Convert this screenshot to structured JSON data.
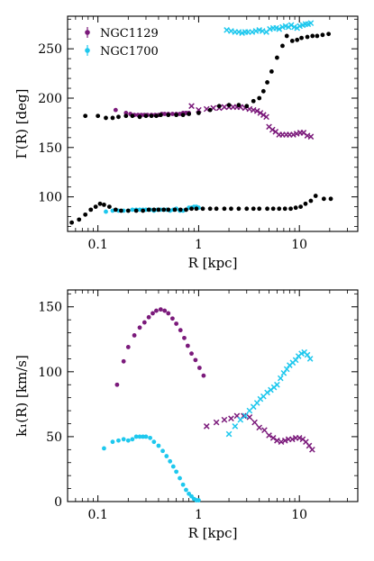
{
  "colors": {
    "ngc1129": "#7b1a7b",
    "ngc1700": "#1ec8ee",
    "other": "#000000"
  },
  "chart_data": [
    {
      "type": "scatter",
      "xscale": "log",
      "xlabel": "R [kpc]",
      "ylabel": "Γ(R) [deg]",
      "xlim": [
        0.05,
        38
      ],
      "ylim": [
        65,
        283
      ],
      "xticks": [
        {
          "value": 0.1,
          "label": "0.1"
        },
        {
          "value": 1,
          "label": "1"
        },
        {
          "value": 10,
          "label": "10"
        }
      ],
      "yticks": [
        {
          "value": 100,
          "label": "100"
        },
        {
          "value": 150,
          "label": "150"
        },
        {
          "value": 200,
          "label": "200"
        },
        {
          "value": 250,
          "label": "250"
        }
      ],
      "legend": {
        "placement": "top-left",
        "entries": [
          {
            "name": "NGC1129",
            "color": "#7b1a7b"
          },
          {
            "name": "NGC1700",
            "color": "#1ec8ee"
          }
        ]
      },
      "series": [
        {
          "name": "NGC1129",
          "marker": "dot",
          "color": "#7b1a7b",
          "x": [
            0.15,
            0.19,
            0.21,
            0.23,
            0.25,
            0.27,
            0.29,
            0.31,
            0.34,
            0.37,
            0.4,
            0.43,
            0.46,
            0.5,
            0.55,
            0.6,
            0.65,
            0.7,
            0.75,
            0.8
          ],
          "y": [
            188,
            185,
            184,
            183,
            183,
            183,
            183,
            183,
            183,
            183,
            183,
            184,
            184,
            184,
            184,
            184,
            184,
            185,
            185,
            185
          ]
        },
        {
          "name": "NGC1129 (×)",
          "marker": "x",
          "color": "#7b1a7b",
          "x": [
            0.85,
            1.0,
            1.2,
            1.4,
            1.6,
            1.8,
            2.0,
            2.2,
            2.4,
            2.6,
            2.9,
            3.2,
            3.5,
            3.8,
            4.1,
            4.4,
            4.7,
            5.0,
            5.4,
            5.8,
            6.3,
            6.8,
            7.4,
            8.0,
            8.7,
            9.4,
            10.2,
            11.0,
            12.0,
            13.0
          ],
          "y": [
            192,
            188,
            189,
            190,
            190,
            191,
            191,
            191,
            191,
            191,
            190,
            189,
            188,
            187,
            185,
            183,
            181,
            171,
            168,
            166,
            163,
            163,
            163,
            163,
            163,
            164,
            165,
            165,
            162,
            161
          ]
        },
        {
          "name": "NGC1700",
          "marker": "dot",
          "color": "#1ec8ee",
          "x": [
            0.12,
            0.14,
            0.16,
            0.18,
            0.2,
            0.22,
            0.24,
            0.26,
            0.28,
            0.3,
            0.33,
            0.36,
            0.39,
            0.42,
            0.45,
            0.48,
            0.52,
            0.56,
            0.6,
            0.65,
            0.7,
            0.75,
            0.8,
            0.85,
            0.9,
            0.95,
            1.0
          ],
          "y": [
            85,
            86,
            86,
            86,
            86,
            87,
            87,
            87,
            87,
            87,
            87,
            86,
            87,
            87,
            87,
            87,
            86,
            87,
            88,
            86,
            86,
            87,
            89,
            89,
            90,
            90,
            89
          ]
        },
        {
          "name": "NGC1700 (×)",
          "marker": "x",
          "color": "#1ec8ee",
          "x": [
            1.9,
            2.1,
            2.3,
            2.5,
            2.7,
            2.9,
            3.1,
            3.4,
            3.7,
            4.0,
            4.3,
            4.7,
            5.1,
            5.5,
            5.9,
            6.3,
            6.8,
            7.3,
            7.8,
            8.3,
            8.9,
            9.5,
            10.1,
            10.8,
            11.5,
            12.2,
            13.0
          ],
          "y": [
            269,
            268,
            267,
            267,
            266,
            267,
            267,
            267,
            268,
            269,
            268,
            267,
            270,
            271,
            271,
            270,
            272,
            273,
            272,
            274,
            272,
            271,
            273,
            274,
            275,
            275,
            276
          ]
        },
        {
          "name": "",
          "marker": "dot",
          "color": "#000000",
          "x": [
            0.075,
            0.1,
            0.12,
            0.14,
            0.16,
            0.19,
            0.22,
            0.26,
            0.3,
            0.34,
            0.38,
            0.42,
            0.5,
            0.6,
            0.7,
            0.8,
            1.0,
            1.3,
            1.6,
            2.0,
            2.5,
            3.0,
            3.5,
            4.0,
            4.4,
            4.8,
            5.3,
            6.0,
            6.8,
            7.5,
            8.5,
            9.5,
            10.5,
            12.0,
            13.5,
            15.0,
            17.0,
            19.5
          ],
          "y": [
            182,
            182,
            180,
            180,
            181,
            182,
            182,
            181,
            182,
            182,
            182,
            183,
            183,
            183,
            183,
            184,
            185,
            188,
            192,
            193,
            193,
            192,
            197,
            200,
            207,
            216,
            227,
            241,
            253,
            263,
            258,
            259,
            261,
            262,
            263,
            263,
            264,
            265
          ]
        },
        {
          "name": "",
          "marker": "dot",
          "color": "#000000",
          "x": [
            0.055,
            0.065,
            0.075,
            0.085,
            0.095,
            0.105,
            0.115,
            0.13,
            0.15,
            0.17,
            0.2,
            0.24,
            0.28,
            0.32,
            0.36,
            0.4,
            0.45,
            0.5,
            0.58,
            0.66,
            0.75,
            0.85,
            0.95,
            1.1,
            1.3,
            1.5,
            1.8,
            2.1,
            2.5,
            3.0,
            3.5,
            4.0,
            4.8,
            5.5,
            6.3,
            7.2,
            8.2,
            9.2,
            10.3,
            11.5,
            13.0,
            14.5,
            17.5,
            20.5
          ],
          "y": [
            74,
            77,
            82,
            87,
            90,
            93,
            92,
            90,
            87,
            86,
            86,
            86,
            86,
            87,
            87,
            87,
            87,
            87,
            87,
            87,
            87,
            88,
            88,
            88,
            88,
            88,
            88,
            88,
            88,
            88,
            88,
            88,
            88,
            88,
            88,
            88,
            88,
            89,
            90,
            93,
            96,
            101,
            98,
            98
          ]
        }
      ]
    },
    {
      "type": "scatter",
      "xscale": "log",
      "xlabel": "R [kpc]",
      "ylabel": "k₁(R) [km/s]",
      "xlim": [
        0.05,
        38
      ],
      "ylim": [
        0,
        163
      ],
      "xticks": [
        {
          "value": 0.1,
          "label": "0.1"
        },
        {
          "value": 1,
          "label": "1"
        },
        {
          "value": 10,
          "label": "10"
        }
      ],
      "yticks": [
        {
          "value": 0,
          "label": "0"
        },
        {
          "value": 50,
          "label": "50"
        },
        {
          "value": 100,
          "label": "100"
        },
        {
          "value": 150,
          "label": "150"
        }
      ],
      "series": [
        {
          "name": "NGC1129",
          "marker": "dot",
          "color": "#7b1a7b",
          "x": [
            0.155,
            0.18,
            0.2,
            0.23,
            0.26,
            0.29,
            0.32,
            0.35,
            0.38,
            0.42,
            0.46,
            0.5,
            0.55,
            0.6,
            0.66,
            0.72,
            0.78,
            0.85,
            0.93,
            1.02,
            1.12
          ],
          "y": [
            90,
            108,
            119,
            128,
            134,
            138,
            142,
            145,
            147,
            148,
            147,
            145,
            141,
            137,
            132,
            126,
            120,
            114,
            109,
            103,
            97
          ]
        },
        {
          "name": "NGC1129 (×)",
          "marker": "x",
          "color": "#7b1a7b",
          "x": [
            1.2,
            1.5,
            1.8,
            2.1,
            2.4,
            2.8,
            3.2,
            3.6,
            4.0,
            4.5,
            5.0,
            5.5,
            6.0,
            6.6,
            7.2,
            7.8,
            8.5,
            9.2,
            10.0,
            10.8,
            11.6,
            12.5,
            13.4
          ],
          "y": [
            58,
            61,
            63,
            64,
            66,
            66,
            65,
            61,
            57,
            55,
            51,
            49,
            47,
            46,
            47,
            48,
            48,
            49,
            49,
            48,
            46,
            43,
            40
          ]
        },
        {
          "name": "NGC1700",
          "marker": "dot",
          "color": "#1ec8ee",
          "x": [
            0.115,
            0.14,
            0.16,
            0.18,
            0.2,
            0.22,
            0.24,
            0.26,
            0.28,
            0.3,
            0.33,
            0.36,
            0.4,
            0.44,
            0.48,
            0.52,
            0.56,
            0.6,
            0.65,
            0.7,
            0.75,
            0.8,
            0.85,
            0.9,
            0.95,
            1.0
          ],
          "y": [
            41,
            46,
            47,
            48,
            47,
            48,
            50,
            50,
            50,
            50,
            49,
            46,
            43,
            39,
            35,
            31,
            27,
            23,
            18,
            13,
            9,
            6,
            4,
            2,
            1,
            1
          ]
        },
        {
          "name": "NGC1700 (×)",
          "marker": "x",
          "color": "#1ec8ee",
          "x": [
            2.0,
            2.3,
            2.6,
            2.9,
            3.2,
            3.5,
            3.8,
            4.1,
            4.4,
            4.8,
            5.2,
            5.6,
            6.0,
            6.5,
            7.0,
            7.5,
            8.0,
            8.6,
            9.2,
            9.8,
            10.5,
            11.2,
            12.0,
            12.8
          ],
          "y": [
            52,
            58,
            63,
            66,
            70,
            73,
            76,
            79,
            81,
            84,
            86,
            88,
            90,
            95,
            99,
            102,
            105,
            107,
            109,
            112,
            114,
            115,
            113,
            110
          ]
        }
      ]
    }
  ]
}
